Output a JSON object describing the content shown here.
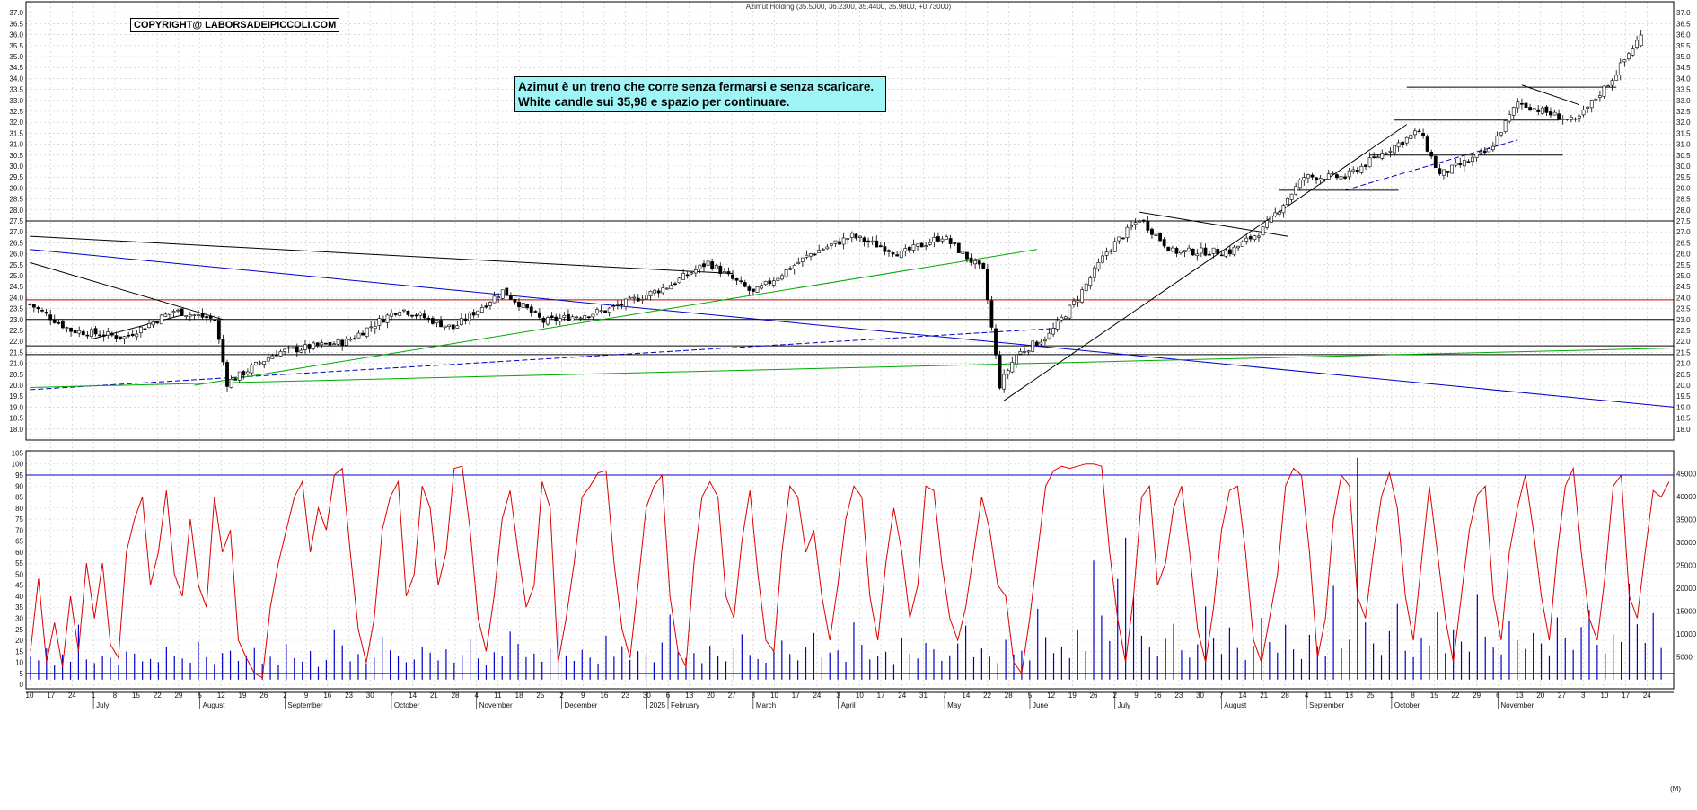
{
  "chart_data": [
    {
      "type": "candlestick",
      "title": "Azimut Holding (35.5000, 36.2300, 35.4400, 35.9800, +0.73000)",
      "ylim": [
        17.5,
        37.5
      ],
      "y_ticks": [
        "18.0",
        "18.5",
        "19.0",
        "19.5",
        "20.0",
        "20.5",
        "21.0",
        "21.5",
        "22.0",
        "22.5",
        "23.0",
        "23.5",
        "24.0",
        "24.5",
        "25.0",
        "25.5",
        "26.0",
        "26.5",
        "27.0",
        "27.5",
        "28.0",
        "28.5",
        "29.0",
        "29.5",
        "30.0",
        "30.5",
        "31.0",
        "31.5",
        "32.0",
        "32.5",
        "33.0",
        "33.5",
        "34.0",
        "34.5",
        "35.0",
        "35.5",
        "36.0",
        "36.5",
        "37.0"
      ],
      "last_candle": {
        "open": 35.5,
        "high": 36.23,
        "low": 35.44,
        "close": 35.98
      },
      "price_path": [
        [
          0,
          23.7
        ],
        [
          10,
          22.5
        ],
        [
          23,
          22.2
        ],
        [
          35,
          23.4
        ],
        [
          45,
          23.0
        ],
        [
          48,
          20.1
        ],
        [
          60,
          21.5
        ],
        [
          77,
          22.0
        ],
        [
          90,
          23.5
        ],
        [
          103,
          22.6
        ],
        [
          115,
          24.3
        ],
        [
          125,
          22.9
        ],
        [
          140,
          23.4
        ],
        [
          155,
          24.5
        ],
        [
          165,
          25.6
        ],
        [
          176,
          24.2
        ],
        [
          190,
          26.0
        ],
        [
          200,
          26.8
        ],
        [
          212,
          26.0
        ],
        [
          222,
          26.8
        ],
        [
          232,
          25.2
        ],
        [
          236,
          20.0
        ],
        [
          240,
          21.4
        ],
        [
          248,
          22.3
        ],
        [
          255,
          24.0
        ],
        [
          262,
          26.1
        ],
        [
          270,
          27.6
        ],
        [
          278,
          26.1
        ],
        [
          292,
          26.1
        ],
        [
          300,
          27.1
        ],
        [
          310,
          29.5
        ],
        [
          320,
          29.5
        ],
        [
          330,
          30.7
        ],
        [
          338,
          31.6
        ],
        [
          343,
          29.6
        ],
        [
          355,
          30.7
        ],
        [
          362,
          32.9
        ],
        [
          376,
          32.0
        ],
        [
          385,
          34.0
        ],
        [
          392,
          35.98
        ]
      ],
      "horizontal_levels": [
        {
          "value": 27.5,
          "color": "#000000"
        },
        {
          "value": 23.9,
          "color": "#cc0000"
        },
        {
          "value": 23.0,
          "color": "#000000"
        },
        {
          "value": 21.8,
          "color": "#000000"
        },
        {
          "value": 21.4,
          "color": "#000000"
        }
      ],
      "trendlines": [
        {
          "from": [
            0,
            26.8
          ],
          "to": [
            171,
            25.1
          ],
          "color": "#000000"
        },
        {
          "from": [
            0,
            26.2
          ],
          "to": [
            400,
            19.0
          ],
          "color": "#0000cc"
        },
        {
          "from": [
            0,
            25.6
          ],
          "to": [
            47,
            23.0
          ],
          "color": "#000000"
        },
        {
          "from": [
            15,
            22.1
          ],
          "to": [
            37,
            23.2
          ],
          "color": "#000000"
        },
        {
          "from": [
            0,
            19.8
          ],
          "to": [
            250,
            22.6
          ],
          "color": "#0000cc",
          "dashed": true
        },
        {
          "from": [
            40,
            20.0
          ],
          "to": [
            245,
            26.2
          ],
          "color": "#00aa00"
        },
        {
          "from": [
            0,
            19.9
          ],
          "to": [
            400,
            21.7
          ],
          "color": "#00aa00"
        },
        {
          "from": [
            237,
            19.3
          ],
          "to": [
            335,
            31.9
          ],
          "color": "#000000"
        },
        {
          "from": [
            270,
            27.9
          ],
          "to": [
            306,
            26.8
          ],
          "color": "#000000"
        },
        {
          "from": [
            320,
            28.9
          ],
          "to": [
            362,
            31.2
          ],
          "color": "#0000cc",
          "dashed": true
        },
        {
          "from": [
            363,
            33.7
          ],
          "to": [
            377,
            32.8
          ],
          "color": "#000000"
        },
        {
          "from": [
            304,
            28.9
          ],
          "to": [
            333,
            28.9
          ],
          "color": "#000000"
        },
        {
          "from": [
            326,
            30.5
          ],
          "to": [
            373,
            30.5
          ],
          "color": "#000000"
        },
        {
          "from": [
            332,
            32.1
          ],
          "to": [
            372,
            32.1
          ],
          "color": "#000000"
        },
        {
          "from": [
            335,
            33.6
          ],
          "to": [
            386,
            33.6
          ],
          "color": "#000000"
        }
      ]
    },
    {
      "type": "line",
      "y_ticks": [
        "0",
        "5",
        "10",
        "15",
        "20",
        "25",
        "30",
        "35",
        "40",
        "45",
        "50",
        "55",
        "60",
        "65",
        "70",
        "75",
        "80",
        "85",
        "90",
        "95",
        "100",
        "105"
      ],
      "ylim": [
        -2,
        106
      ],
      "reference_lines": [
        95,
        5
      ],
      "color": "#dd0000",
      "values": [
        15,
        48,
        10,
        28,
        8,
        40,
        15,
        55,
        30,
        55,
        18,
        12,
        60,
        75,
        85,
        45,
        60,
        88,
        50,
        40,
        75,
        45,
        35,
        85,
        60,
        70,
        20,
        12,
        5,
        3,
        35,
        55,
        70,
        85,
        92,
        60,
        80,
        70,
        95,
        98,
        60,
        25,
        10,
        30,
        70,
        85,
        92,
        40,
        50,
        90,
        80,
        45,
        60,
        98,
        99,
        70,
        30,
        15,
        40,
        75,
        88,
        60,
        35,
        45,
        92,
        80,
        10,
        30,
        55,
        85,
        90,
        96,
        97,
        55,
        25,
        12,
        45,
        80,
        90,
        95,
        40,
        15,
        8,
        55,
        85,
        92,
        85,
        40,
        30,
        65,
        88,
        50,
        20,
        15,
        60,
        90,
        85,
        60,
        70,
        40,
        20,
        45,
        75,
        90,
        85,
        40,
        20,
        55,
        80,
        60,
        30,
        45,
        90,
        88,
        55,
        30,
        20,
        35,
        60,
        85,
        70,
        45,
        40,
        10,
        5,
        30,
        60,
        90,
        97,
        99,
        98,
        99,
        100,
        100,
        99,
        60,
        30,
        10,
        40,
        85,
        90,
        45,
        55,
        80,
        90,
        60,
        25,
        10,
        35,
        70,
        88,
        90,
        60,
        20,
        10,
        30,
        50,
        90,
        98,
        95,
        60,
        12,
        30,
        75,
        95,
        90,
        40,
        30,
        60,
        85,
        96,
        80,
        40,
        20,
        55,
        90,
        60,
        30,
        10,
        40,
        70,
        86,
        90,
        40,
        20,
        60,
        80,
        95,
        70,
        40,
        20,
        60,
        90,
        98,
        60,
        30,
        20,
        50,
        90,
        95,
        40,
        30,
        60,
        88,
        85,
        92
      ]
    },
    {
      "type": "bar",
      "name": "volume",
      "y_ticks": [
        "5000",
        "10000",
        "15000",
        "20000",
        "25000",
        "30000",
        "35000",
        "40000",
        "45000"
      ],
      "ylim": [
        -2000,
        50000
      ],
      "unit_label": "(M)",
      "color": "#0000cc",
      "values": [
        5000,
        4200,
        6800,
        3100,
        5500,
        3900,
        12000,
        4400,
        3600,
        5200,
        4800,
        3300,
        6100,
        5700,
        4000,
        4500,
        3800,
        7200,
        5100,
        4600,
        3700,
        8300,
        4900,
        3400,
        5800,
        6300,
        4100,
        5300,
        6900,
        3500,
        5000,
        3200,
        7700,
        4700,
        3900,
        6200,
        2800,
        4300,
        11000,
        7500,
        4000,
        5600,
        3600,
        4800,
        9200,
        6400,
        5100,
        3800,
        4400,
        7100,
        5900,
        4200,
        6600,
        3700,
        5400,
        8800,
        4600,
        3300,
        6000,
        5200,
        10500,
        7800,
        4900,
        5700,
        3900,
        6700,
        12800,
        5300,
        4100,
        6500,
        4800,
        3500,
        9600,
        5000,
        7300,
        4300,
        6200,
        5500,
        3800,
        8100,
        14200,
        6000,
        4700,
        5800,
        3600,
        7400,
        5100,
        4000,
        6800,
        9900,
        5400,
        4500,
        3700,
        6300,
        8500,
        5600,
        4200,
        7000,
        10200,
        4800,
        5900,
        6400,
        3900,
        12500,
        7600,
        4400,
        5200,
        6100,
        3400,
        9100,
        5700,
        4600,
        8000,
        6600,
        4100,
        5300,
        7900,
        11800,
        4900,
        6800,
        5000,
        3600,
        8700,
        5500,
        6300,
        4200,
        15500,
        9300,
        5800,
        7100,
        4700,
        10800,
        6200,
        26000,
        14000,
        8400,
        22000,
        31000,
        18000,
        9600,
        7000,
        5200,
        8900,
        12200,
        6400,
        4800,
        7700,
        16000,
        9000,
        5600,
        11400,
        6900,
        4300,
        7400,
        13500,
        8200,
        5900,
        12000,
        6600,
        4500,
        9800,
        7300,
        5100,
        20500,
        6800,
        8700,
        48500,
        12500,
        7900,
        5400,
        10600,
        16500,
        6300,
        4900,
        9200,
        7500,
        14800,
        5800,
        11000,
        8300,
        6100,
        18500,
        9400,
        7000,
        5500,
        12800,
        8600,
        6700,
        10200,
        7900,
        5300,
        13600,
        9100,
        6500,
        11500,
        15200,
        7600,
        5700,
        9900,
        8200,
        21000,
        12100,
        8000,
        14500,
        6900
      ]
    }
  ],
  "x_axis": {
    "day_labels": [
      "10",
      "17",
      "24",
      "1",
      "8",
      "15",
      "22",
      "29",
      "5",
      "12",
      "19",
      "26",
      "2",
      "9",
      "16",
      "23",
      "30",
      "7",
      "14",
      "21",
      "28",
      "4",
      "11",
      "18",
      "25",
      "2",
      "9",
      "16",
      "23",
      "30",
      "6",
      "13",
      "20",
      "27",
      "3",
      "10",
      "17",
      "24",
      "3",
      "10",
      "17",
      "24",
      "31",
      "7",
      "14",
      "22",
      "28",
      "5",
      "12",
      "19",
      "26",
      "2",
      "9",
      "16",
      "23",
      "30",
      "7",
      "14",
      "21",
      "28",
      "4",
      "11",
      "18",
      "25",
      "1",
      "8",
      "15",
      "22",
      "29",
      "6",
      "13",
      "20",
      "27",
      "3",
      "10",
      "17",
      "24"
    ],
    "month_labels": [
      "July",
      "August",
      "September",
      "October",
      "November",
      "December",
      "2025",
      "February",
      "March",
      "April",
      "May",
      "June",
      "July",
      "August",
      "September",
      "October",
      "November"
    ]
  },
  "copyright": "COPYRIGHT@ LABORSADEIPICCOLI.COM",
  "annotation": {
    "line1": "Azimut è un treno che corre senza fermarsi e senza scaricare.",
    "line2": "White candle sui 35,98 e spazio per continuare."
  }
}
